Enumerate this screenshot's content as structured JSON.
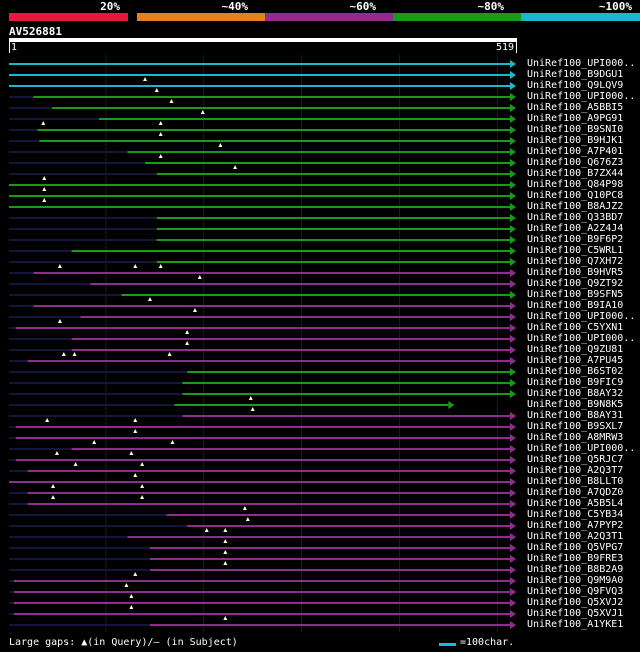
{
  "legend": [
    {
      "label": "20%",
      "color": "#e8183c"
    },
    {
      "label": "~40%",
      "color": "#e4801e"
    },
    {
      "label": "~60%",
      "color": "#8e2d8e"
    },
    {
      "label": "~80%",
      "color": "#1a9a1a"
    },
    {
      "label": "~100%",
      "color": "#1ab8c8"
    }
  ],
  "query": {
    "name": "AV526881",
    "start": "1",
    "end": "519",
    "length": 519
  },
  "hits": [
    {
      "label": "UniRef100_UPI000..",
      "color": "#1ab8c8",
      "start": 1,
      "end": 519,
      "gaps": []
    },
    {
      "label": "UniRef100_B9DGU1",
      "color": "#1ab8c8",
      "start": 1,
      "end": 519,
      "gaps": []
    },
    {
      "label": "UniRef100_Q9LQV9",
      "color": "#1ab8c8",
      "start": 1,
      "end": 519,
      "gaps": [
        140
      ]
    },
    {
      "label": "UniRef100_UPI000..",
      "color": "#1a9a1a",
      "start": 26,
      "end": 519,
      "gaps": [
        152
      ]
    },
    {
      "label": "UniRef100_A5BBI5",
      "color": "#1a9a1a",
      "start": 45,
      "end": 519,
      "gaps": [
        167
      ]
    },
    {
      "label": "UniRef100_A9PG91",
      "color": "#1a9a1a",
      "start": 93,
      "end": 519,
      "gaps": [
        199
      ]
    },
    {
      "label": "UniRef100_B9SNI0",
      "color": "#1a9a1a",
      "start": 30,
      "end": 519,
      "gaps": [
        36,
        156
      ]
    },
    {
      "label": "UniRef100_B9HJK1",
      "color": "#1a9a1a",
      "start": 32,
      "end": 519,
      "gaps": [
        156
      ]
    },
    {
      "label": "UniRef100_A7P401",
      "color": "#1a9a1a",
      "start": 122,
      "end": 519,
      "gaps": [
        217
      ]
    },
    {
      "label": "UniRef100_Q676Z3",
      "color": "#1a9a1a",
      "start": 140,
      "end": 519,
      "gaps": [
        156
      ]
    },
    {
      "label": "UniRef100_B7ZX44",
      "color": "#1a9a1a",
      "start": 152,
      "end": 519,
      "gaps": [
        232
      ]
    },
    {
      "label": "UniRef100_Q84P98",
      "color": "#1a9a1a",
      "start": 1,
      "end": 519,
      "gaps": [
        37
      ]
    },
    {
      "label": "UniRef100_Q10PC8",
      "color": "#1a9a1a",
      "start": 1,
      "end": 519,
      "gaps": [
        37
      ]
    },
    {
      "label": "UniRef100_B8AJZ2",
      "color": "#1a9a1a",
      "start": 1,
      "end": 519,
      "gaps": [
        37
      ]
    },
    {
      "label": "UniRef100_Q33BD7",
      "color": "#1a9a1a",
      "start": 152,
      "end": 519,
      "gaps": []
    },
    {
      "label": "UniRef100_A2Z4J4",
      "color": "#1a9a1a",
      "start": 152,
      "end": 519,
      "gaps": []
    },
    {
      "label": "UniRef100_B9F6P2",
      "color": "#1a9a1a",
      "start": 152,
      "end": 519,
      "gaps": []
    },
    {
      "label": "UniRef100_C5WRL1",
      "color": "#1a9a1a",
      "start": 65,
      "end": 519,
      "gaps": []
    },
    {
      "label": "UniRef100_Q7XH72",
      "color": "#1a9a1a",
      "start": 152,
      "end": 519,
      "gaps": []
    },
    {
      "label": "UniRef100_B9HVR5",
      "color": "#8e2d8e",
      "start": 26,
      "end": 519,
      "gaps": [
        53,
        130,
        156
      ]
    },
    {
      "label": "UniRef100_Q9ZT92",
      "color": "#8e2d8e",
      "start": 84,
      "end": 519,
      "gaps": [
        196
      ]
    },
    {
      "label": "UniRef100_B9SFN5",
      "color": "#1a9a1a",
      "start": 116,
      "end": 519,
      "gaps": []
    },
    {
      "label": "UniRef100_B9IA10",
      "color": "#8e2d8e",
      "start": 26,
      "end": 519,
      "gaps": [
        145
      ]
    },
    {
      "label": "UniRef100_UPI000..",
      "color": "#8e2d8e",
      "start": 74,
      "end": 519,
      "gaps": [
        191
      ]
    },
    {
      "label": "UniRef100_C5YXN1",
      "color": "#8e2d8e",
      "start": 8,
      "end": 519,
      "gaps": [
        53
      ]
    },
    {
      "label": "UniRef100_UPI000..",
      "color": "#8e2d8e",
      "start": 65,
      "end": 519,
      "gaps": [
        183
      ]
    },
    {
      "label": "UniRef100_Q9ZU81",
      "color": "#8e2d8e",
      "start": 65,
      "end": 519,
      "gaps": [
        183
      ]
    },
    {
      "label": "UniRef100_A7PU45",
      "color": "#8e2d8e",
      "start": 20,
      "end": 519,
      "gaps": [
        57,
        68,
        165
      ]
    },
    {
      "label": "UniRef100_B6ST02",
      "color": "#1a9a1a",
      "start": 183,
      "end": 519,
      "gaps": []
    },
    {
      "label": "UniRef100_B9FIC9",
      "color": "#1a9a1a",
      "start": 178,
      "end": 519,
      "gaps": []
    },
    {
      "label": "UniRef100_B8AY32",
      "color": "#1a9a1a",
      "start": 178,
      "end": 519,
      "gaps": []
    },
    {
      "label": "UniRef100_B9N8K5",
      "color": "#1a9a1a",
      "start": 170,
      "end": 456,
      "gaps": [
        248
      ]
    },
    {
      "label": "UniRef100_B8AY31",
      "color": "#8e2d8e",
      "start": 178,
      "end": 519,
      "gaps": [
        250
      ]
    },
    {
      "label": "UniRef100_B9SXL7",
      "color": "#8e2d8e",
      "start": 8,
      "end": 519,
      "gaps": [
        40,
        130
      ]
    },
    {
      "label": "UniRef100_A8MRW3",
      "color": "#8e2d8e",
      "start": 8,
      "end": 519,
      "gaps": [
        130
      ]
    },
    {
      "label": "UniRef100_UPI000..",
      "color": "#8e2d8e",
      "start": 65,
      "end": 519,
      "gaps": [
        88,
        168
      ]
    },
    {
      "label": "UniRef100_Q5RJC7",
      "color": "#8e2d8e",
      "start": 8,
      "end": 519,
      "gaps": [
        50,
        126
      ]
    },
    {
      "label": "UniRef100_A2Q3T7",
      "color": "#8e2d8e",
      "start": 20,
      "end": 519,
      "gaps": [
        69,
        137
      ]
    },
    {
      "label": "UniRef100_B8LLT0",
      "color": "#8e2d8e",
      "start": 1,
      "end": 519,
      "gaps": [
        130
      ]
    },
    {
      "label": "UniRef100_A7QDZ0",
      "color": "#8e2d8e",
      "start": 20,
      "end": 519,
      "gaps": [
        46,
        137
      ]
    },
    {
      "label": "UniRef100_A5B5L4",
      "color": "#8e2d8e",
      "start": 20,
      "end": 519,
      "gaps": [
        46,
        137
      ]
    },
    {
      "label": "UniRef100_C5YB34",
      "color": "#8e2d8e",
      "start": 162,
      "end": 519,
      "gaps": [
        242
      ]
    },
    {
      "label": "UniRef100_A7PYP2",
      "color": "#8e2d8e",
      "start": 183,
      "end": 519,
      "gaps": [
        245
      ]
    },
    {
      "label": "UniRef100_A2Q3T1",
      "color": "#8e2d8e",
      "start": 122,
      "end": 519,
      "gaps": [
        203,
        222
      ]
    },
    {
      "label": "UniRef100_Q5VPG7",
      "color": "#8e2d8e",
      "start": 145,
      "end": 519,
      "gaps": [
        222
      ]
    },
    {
      "label": "UniRef100_B9FRE3",
      "color": "#8e2d8e",
      "start": 145,
      "end": 519,
      "gaps": [
        222
      ]
    },
    {
      "label": "UniRef100_B8B2A9",
      "color": "#8e2d8e",
      "start": 145,
      "end": 519,
      "gaps": [
        222
      ]
    },
    {
      "label": "UniRef100_Q9M9A0",
      "color": "#8e2d8e",
      "start": 6,
      "end": 519,
      "gaps": [
        130
      ]
    },
    {
      "label": "UniRef100_Q9FVQ3",
      "color": "#8e2d8e",
      "start": 6,
      "end": 519,
      "gaps": [
        121
      ]
    },
    {
      "label": "UniRef100_Q5XVJ2",
      "color": "#8e2d8e",
      "start": 6,
      "end": 519,
      "gaps": [
        126
      ]
    },
    {
      "label": "UniRef100_Q5XVJ1",
      "color": "#8e2d8e",
      "start": 6,
      "end": 519,
      "gaps": [
        126
      ]
    },
    {
      "label": "UniRef100_A1YKE1",
      "color": "#8e2d8e",
      "start": 145,
      "end": 519,
      "gaps": [
        222
      ]
    }
  ],
  "footer": {
    "gaps_text": "Large gaps: ▲(in Query)/– (in Subject)",
    "scale_text": "=100char."
  }
}
